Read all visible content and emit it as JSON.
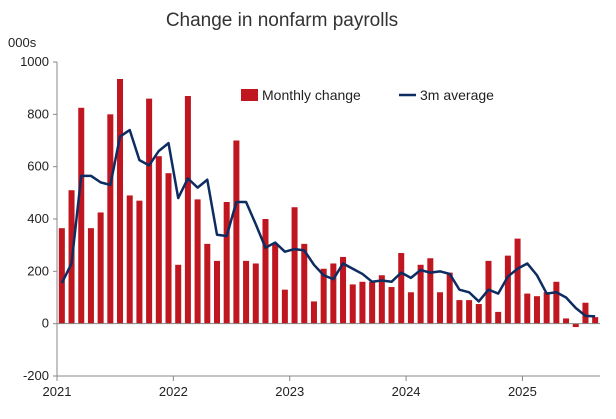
{
  "chart_data": {
    "type": "bar",
    "title": "Change in nonfarm payrolls",
    "unit_label": "000s",
    "ylim": [
      -200,
      1000
    ],
    "yticks": [
      -200,
      0,
      200,
      400,
      600,
      800,
      1000
    ],
    "xtick_labels": [
      "2021",
      "2022",
      "2023",
      "2024",
      "2025"
    ],
    "xtick_months": [
      0,
      12,
      24,
      36,
      48
    ],
    "grid": false,
    "legend_position": "top-right",
    "months": [
      "2021-01",
      "2021-02",
      "2021-03",
      "2021-04",
      "2021-05",
      "2021-06",
      "2021-07",
      "2021-08",
      "2021-09",
      "2021-10",
      "2021-11",
      "2021-12",
      "2022-01",
      "2022-02",
      "2022-03",
      "2022-04",
      "2022-05",
      "2022-06",
      "2022-07",
      "2022-08",
      "2022-09",
      "2022-10",
      "2022-11",
      "2022-12",
      "2023-01",
      "2023-02",
      "2023-03",
      "2023-04",
      "2023-05",
      "2023-06",
      "2023-07",
      "2023-08",
      "2023-09",
      "2023-10",
      "2023-11",
      "2023-12",
      "2024-01",
      "2024-02",
      "2024-03",
      "2024-04",
      "2024-05",
      "2024-06",
      "2024-07",
      "2024-08",
      "2024-09",
      "2024-10",
      "2024-11",
      "2024-12",
      "2025-01",
      "2025-02",
      "2025-03",
      "2025-04",
      "2025-05",
      "2025-06",
      "2025-07",
      "2025-08"
    ],
    "series": [
      {
        "name": "Monthly change",
        "kind": "bar",
        "color": "#C0161F",
        "values": [
          365,
          510,
          825,
          365,
          425,
          800,
          935,
          490,
          470,
          860,
          640,
          575,
          225,
          870,
          475,
          305,
          240,
          465,
          700,
          240,
          230,
          400,
          305,
          130,
          445,
          305,
          85,
          210,
          230,
          255,
          150,
          160,
          160,
          185,
          140,
          270,
          120,
          225,
          250,
          120,
          195,
          90,
          90,
          75,
          240,
          45,
          260,
          325,
          115,
          105,
          120,
          160,
          20,
          -13,
          80,
          25
        ]
      },
      {
        "name": "3m average",
        "kind": "line",
        "color": "#0D2D62",
        "values": [
          155,
          230,
          565,
          565,
          540,
          530,
          715,
          740,
          625,
          605,
          660,
          690,
          480,
          555,
          520,
          550,
          340,
          335,
          465,
          465,
          380,
          290,
          310,
          275,
          285,
          280,
          225,
          185,
          170,
          230,
          210,
          190,
          160,
          165,
          160,
          195,
          175,
          205,
          195,
          200,
          190,
          130,
          120,
          85,
          130,
          115,
          180,
          210,
          230,
          185,
          115,
          120,
          100,
          60,
          30,
          28
        ]
      }
    ]
  }
}
